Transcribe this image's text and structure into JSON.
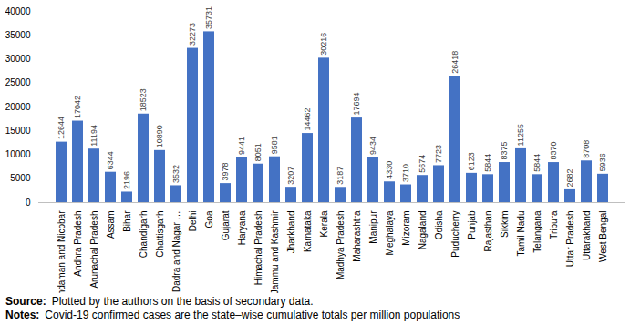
{
  "chart_data": {
    "type": "bar",
    "categories": [
      "Andaman and Nicobar",
      "Andhra Pradesh",
      "Arunachal Pradesh",
      "Assam",
      "Bihar",
      "Chandigarh",
      "Chattisgarh",
      "Dadra and Nagar …",
      "Delhi",
      "Goa",
      "Gujarat",
      "Haryana",
      "Himachal Pradesh",
      "Jammu and Kashmir",
      "Jharkhand",
      "Karnataka",
      "Kerala",
      "Madhya Pradesh",
      "Maharashtra",
      "Manipur",
      "Meghalaya",
      "Mizoram",
      "Nagaland",
      "Odisha",
      "Puducherry",
      "Punjab",
      "Rajasthan",
      "Sikkim",
      "Tamil Nadu",
      "Telangana",
      "Tripura",
      "Uttar Pradesh",
      "Uttarakhand",
      "West Bengal"
    ],
    "values": [
      12644,
      17042,
      11194,
      6344,
      2196,
      18523,
      10890,
      3532,
      32273,
      35731,
      3978,
      9441,
      8051,
      9581,
      3207,
      14462,
      30216,
      3187,
      17694,
      9434,
      4330,
      3710,
      5674,
      7723,
      26418,
      6123,
      5844,
      8375,
      11255,
      5844,
      8370,
      2682,
      8708,
      5936
    ],
    "color": "#4472c4",
    "ylim": [
      0,
      40000
    ],
    "yticks": [
      0,
      5000,
      10000,
      15000,
      20000,
      25000,
      30000,
      35000,
      40000
    ],
    "grid": false,
    "data_labels": true,
    "annotations": [
      {
        "label": "Source:",
        "text": "Plotted by the authors on the basis of secondary data."
      },
      {
        "label": "Notes:",
        "text": "Covid-19 confirmed cases are the state–wise cumulative totals per million populations"
      }
    ]
  }
}
